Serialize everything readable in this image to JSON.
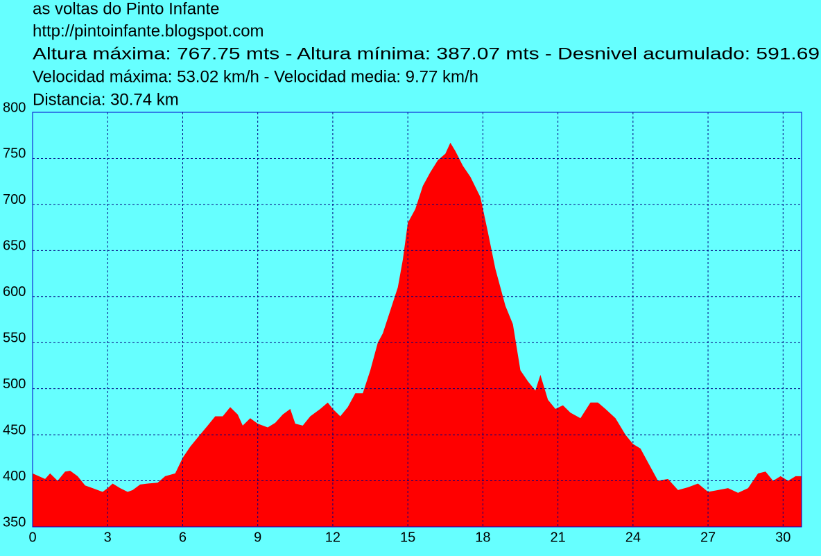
{
  "chart_data": {
    "type": "area",
    "title": "as voltas do Pinto Infante",
    "subtitle": "http://pintoinfante.blogspot.com",
    "annotations": [
      "Altura máxima: 767.75 mts - Altura mínima: 387.07 mts - Desnivel acumulado: 591.69",
      "Velocidad máxima: 53.02 km/h - Velocidad media: 9.77 km/h",
      "Distancia: 30.74 km"
    ],
    "color": "#ff0000",
    "grid": true,
    "x": [
      0,
      0.25,
      0.5,
      0.7,
      1.0,
      1.3,
      1.5,
      1.8,
      2.1,
      2.4,
      2.8,
      3.0,
      3.2,
      3.5,
      3.8,
      4.0,
      4.3,
      4.6,
      5.0,
      5.3,
      5.7,
      6.0,
      6.3,
      6.6,
      7.0,
      7.3,
      7.6,
      7.9,
      8.2,
      8.4,
      8.7,
      9.0,
      9.4,
      9.7,
      10.0,
      10.3,
      10.5,
      10.8,
      11.1,
      11.5,
      11.8,
      12.0,
      12.3,
      12.6,
      12.9,
      13.2,
      13.5,
      13.8,
      14.0,
      14.3,
      14.6,
      14.8,
      15.0,
      15.3,
      15.6,
      15.9,
      16.2,
      16.5,
      16.7,
      16.9,
      17.2,
      17.5,
      17.9,
      18.2,
      18.5,
      18.9,
      19.2,
      19.5,
      19.8,
      20.1,
      20.3,
      20.6,
      20.9,
      21.2,
      21.5,
      21.9,
      22.3,
      22.6,
      22.9,
      23.3,
      23.7,
      24.0,
      24.3,
      24.6,
      25.0,
      25.4,
      25.8,
      26.2,
      26.6,
      27.0,
      27.4,
      27.8,
      28.2,
      28.6,
      29.0,
      29.3,
      29.6,
      29.9,
      30.2,
      30.5,
      30.74
    ],
    "y": [
      408,
      405,
      402,
      408,
      400,
      410,
      411,
      405,
      395,
      392,
      388,
      392,
      397,
      392,
      388,
      390,
      396,
      397,
      398,
      405,
      408,
      425,
      437,
      447,
      460,
      470,
      470,
      480,
      472,
      460,
      468,
      462,
      458,
      463,
      472,
      478,
      462,
      460,
      470,
      478,
      485,
      478,
      470,
      480,
      495,
      495,
      520,
      550,
      560,
      585,
      610,
      640,
      680,
      695,
      720,
      735,
      748,
      755,
      767,
      758,
      742,
      730,
      708,
      670,
      630,
      590,
      570,
      520,
      508,
      498,
      515,
      488,
      478,
      482,
      474,
      468,
      485,
      485,
      478,
      468,
      450,
      440,
      435,
      420,
      400,
      402,
      390,
      393,
      397,
      388,
      390,
      392,
      387,
      392,
      408,
      410,
      400,
      405,
      400,
      405,
      405
    ],
    "xlim": [
      0,
      30.74
    ],
    "ylim": [
      350,
      800
    ],
    "xticks": [
      0,
      3,
      6,
      9,
      12,
      15,
      18,
      21,
      24,
      27,
      30
    ],
    "yticks": [
      350,
      400,
      450,
      500,
      550,
      600,
      650,
      700,
      750,
      800
    ]
  }
}
